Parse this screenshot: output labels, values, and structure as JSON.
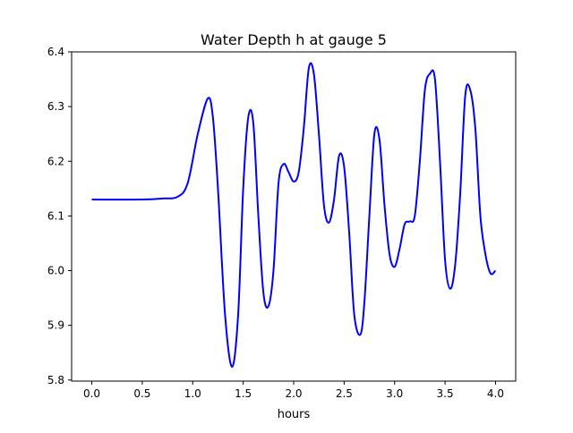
{
  "chart_data": {
    "type": "line",
    "title": "Water Depth h at gauge 5",
    "xlabel": "hours",
    "ylabel": "",
    "xlim": [
      -0.2,
      4.2
    ],
    "ylim": [
      5.798,
      6.4
    ],
    "xticks": [
      0.0,
      0.5,
      1.0,
      1.5,
      2.0,
      2.5,
      3.0,
      3.5,
      4.0
    ],
    "xtick_labels": [
      "0.0",
      "0.5",
      "1.0",
      "1.5",
      "2.0",
      "2.5",
      "3.0",
      "3.5",
      "4.0"
    ],
    "yticks": [
      5.8,
      5.9,
      6.0,
      6.1,
      6.2,
      6.3,
      6.4
    ],
    "ytick_labels": [
      "5.8",
      "5.9",
      "6.0",
      "6.1",
      "6.2",
      "6.3",
      "6.4"
    ],
    "grid": false,
    "series": [
      {
        "name": "",
        "color": "#0000ff",
        "x": [
          0.0,
          0.5,
          0.7,
          0.85,
          0.95,
          1.05,
          1.15,
          1.2,
          1.25,
          1.32,
          1.39,
          1.45,
          1.5,
          1.55,
          1.6,
          1.65,
          1.7,
          1.75,
          1.8,
          1.85,
          1.9,
          1.95,
          2.0,
          2.05,
          2.1,
          2.15,
          2.2,
          2.25,
          2.3,
          2.35,
          2.4,
          2.45,
          2.5,
          2.55,
          2.6,
          2.66,
          2.7,
          2.75,
          2.8,
          2.85,
          2.9,
          2.95,
          3.0,
          3.05,
          3.1,
          3.15,
          3.2,
          3.25,
          3.3,
          3.35,
          3.4,
          3.45,
          3.5,
          3.55,
          3.6,
          3.65,
          3.7,
          3.75,
          3.8,
          3.85,
          3.9,
          3.95,
          4.0
        ],
        "y": [
          6.13,
          6.13,
          6.132,
          6.135,
          6.16,
          6.25,
          6.315,
          6.28,
          6.15,
          5.92,
          5.824,
          5.92,
          6.15,
          6.28,
          6.27,
          6.1,
          5.96,
          5.935,
          6.0,
          6.16,
          6.195,
          6.18,
          6.163,
          6.18,
          6.26,
          6.37,
          6.36,
          6.25,
          6.12,
          6.088,
          6.13,
          6.21,
          6.19,
          6.07,
          5.92,
          5.883,
          5.94,
          6.1,
          6.25,
          6.24,
          6.12,
          6.03,
          6.007,
          6.04,
          6.085,
          6.09,
          6.1,
          6.2,
          6.33,
          6.36,
          6.35,
          6.2,
          6.02,
          5.967,
          6.01,
          6.14,
          6.32,
          6.33,
          6.26,
          6.1,
          6.03,
          5.995,
          6.0
        ]
      }
    ]
  }
}
